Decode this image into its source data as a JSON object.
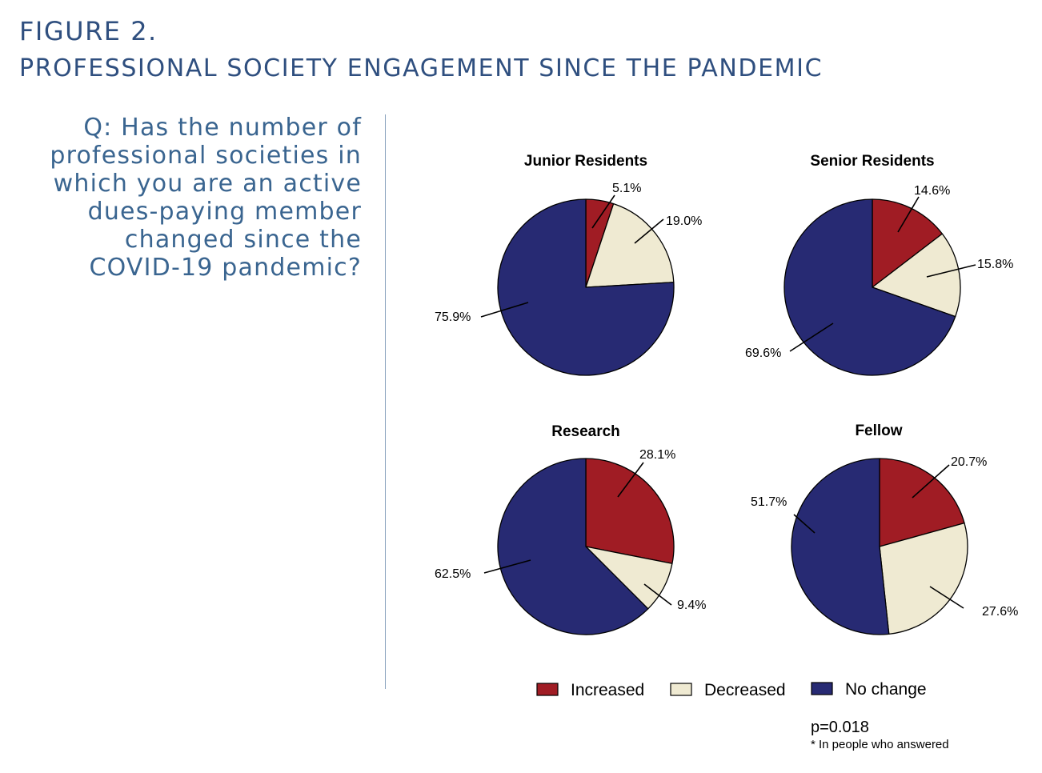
{
  "figure": {
    "label": "FIGURE 2.",
    "title": "PROFESSIONAL SOCIETY ENGAGEMENT SINCE THE PANDEMIC"
  },
  "question_lines": [
    "Q: Has the number of",
    "professional societies in",
    "which you are an active",
    "dues-paying member",
    "changed since the",
    "COVID-19 pandemic?"
  ],
  "colors": {
    "increased": "#a01c24",
    "decreased": "#efead2",
    "no_change": "#272a73"
  },
  "chart_data": [
    {
      "type": "pie",
      "title": "Junior Residents",
      "categories": [
        "Increased",
        "Decreased",
        "No change"
      ],
      "values": [
        5.1,
        19.0,
        75.9
      ],
      "labels": [
        "5.1%",
        "19.0%",
        "75.9%"
      ]
    },
    {
      "type": "pie",
      "title": "Senior Residents",
      "categories": [
        "Increased",
        "Decreased",
        "No change"
      ],
      "values": [
        14.6,
        15.8,
        69.6
      ],
      "labels": [
        "14.6%",
        "15.8%",
        "69.6%"
      ]
    },
    {
      "type": "pie",
      "title": "Research",
      "categories": [
        "Increased",
        "Decreased",
        "No change"
      ],
      "values": [
        28.1,
        9.4,
        62.5
      ],
      "labels": [
        "28.1%",
        "9.4%",
        "62.5%"
      ]
    },
    {
      "type": "pie",
      "title": "Fellow",
      "categories": [
        "Increased",
        "Decreased",
        "No change"
      ],
      "values": [
        20.7,
        27.6,
        51.7
      ],
      "labels": [
        "20.7%",
        "27.6%",
        "51.7%"
      ]
    }
  ],
  "legend": {
    "items": [
      {
        "label": "Increased",
        "color": "#a01c24"
      },
      {
        "label": "Decreased",
        "color": "#efead2"
      },
      {
        "label": "No change",
        "color": "#272a73"
      }
    ]
  },
  "footnote": {
    "p_value": "p=0.018",
    "note": "* In people who answered"
  }
}
